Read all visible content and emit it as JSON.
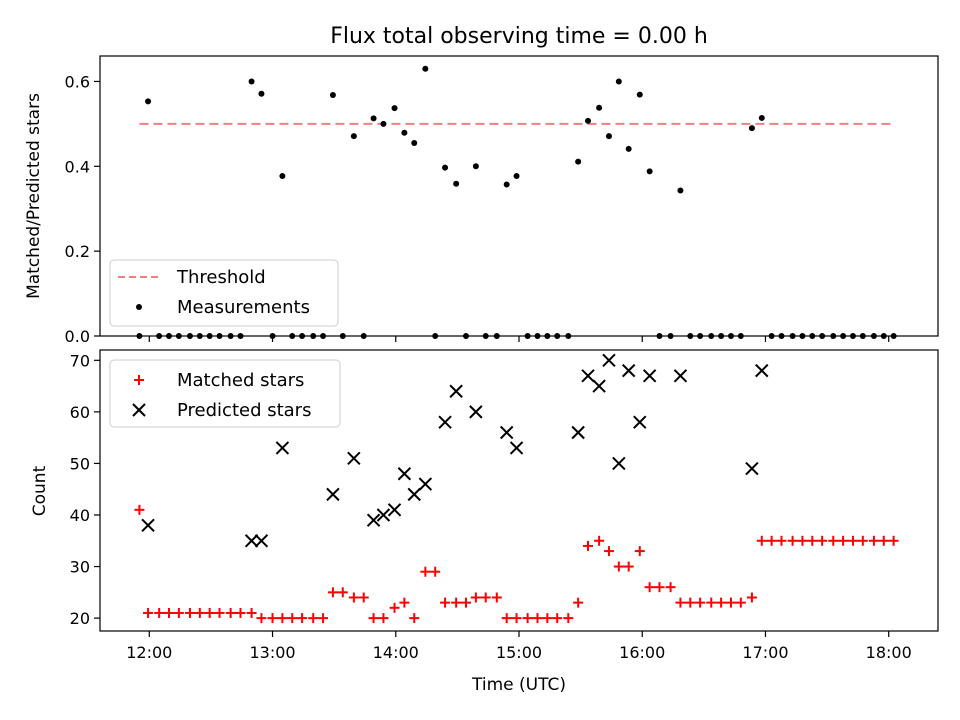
{
  "chart_data": [
    {
      "type": "scatter",
      "title": "Flux total observing time = 0.00 h",
      "xlabel": "",
      "ylabel": "Matched/Predicted stars",
      "ylim": [
        0,
        0.66
      ],
      "yticks": [
        0.0,
        0.2,
        0.4,
        0.6
      ],
      "ytick_labels": [
        "0.0",
        "0.2",
        "0.4",
        "0.6"
      ],
      "xlim": [
        11.6,
        18.4
      ],
      "xticks": [
        12,
        13,
        14,
        15,
        16,
        17,
        18
      ],
      "xtick_labels": [
        "",
        "",
        "",
        "",
        "",
        "",
        ""
      ],
      "legend": {
        "position": "lower left",
        "entries": [
          "Threshold",
          "Measurements"
        ]
      },
      "threshold": {
        "name": "Threshold",
        "x": [
          11.92,
          18.05
        ],
        "y": [
          0.5,
          0.5
        ],
        "color": "#f08080",
        "style": "dashed"
      },
      "measurements": {
        "name": "Measurements",
        "color": "#000000",
        "x": [
          11.92,
          11.99,
          12.08,
          12.16,
          12.24,
          12.33,
          12.41,
          12.49,
          12.57,
          12.66,
          12.74,
          12.83,
          12.91,
          13.0,
          13.08,
          13.16,
          13.24,
          13.33,
          13.41,
          13.49,
          13.57,
          13.66,
          13.74,
          13.82,
          13.9,
          13.99,
          14.07,
          14.15,
          14.24,
          14.32,
          14.4,
          14.49,
          14.57,
          14.65,
          14.73,
          14.82,
          14.9,
          14.98,
          15.07,
          15.15,
          15.23,
          15.31,
          15.4,
          15.48,
          15.56,
          15.65,
          15.73,
          15.81,
          15.89,
          15.98,
          16.06,
          16.14,
          16.23,
          16.31,
          16.39,
          16.47,
          16.56,
          16.64,
          16.72,
          16.8,
          16.89,
          16.97,
          17.05,
          17.13,
          17.22,
          17.3,
          17.38,
          17.46,
          17.55,
          17.63,
          17.71,
          17.79,
          17.88,
          17.96,
          18.04
        ],
        "y": [
          0.0,
          0.553,
          0.0,
          0.0,
          0.0,
          0.0,
          0.0,
          0.0,
          0.0,
          0.0,
          0.0,
          0.6,
          0.571,
          0.0,
          0.377,
          0.0,
          0.0,
          0.0,
          0.0,
          0.568,
          0.0,
          0.471,
          0.0,
          0.513,
          0.5,
          0.537,
          0.479,
          0.455,
          0.63,
          0.0,
          0.397,
          0.359,
          0.0,
          0.4,
          0.0,
          0.0,
          0.357,
          0.377,
          0.0,
          0.0,
          0.0,
          0.0,
          0.0,
          0.411,
          0.507,
          0.538,
          0.471,
          0.6,
          0.441,
          0.569,
          0.388,
          0.0,
          0.0,
          0.343,
          0.0,
          0.0,
          0.0,
          0.0,
          0.0,
          0.0,
          0.49,
          0.514,
          0.0,
          0.0,
          0.0,
          0.0,
          0.0,
          0.0,
          0.0,
          0.0,
          0.0,
          0.0,
          0.0,
          0.0,
          0.0
        ]
      }
    },
    {
      "type": "scatter",
      "title": "",
      "xlabel": "Time (UTC)",
      "ylabel": "Count",
      "ylim": [
        17.5,
        72
      ],
      "yticks": [
        20,
        30,
        40,
        50,
        60,
        70
      ],
      "ytick_labels": [
        "20",
        "30",
        "40",
        "50",
        "60",
        "70"
      ],
      "xlim": [
        11.6,
        18.4
      ],
      "xticks": [
        12,
        13,
        14,
        15,
        16,
        17,
        18
      ],
      "xtick_labels": [
        "12:00",
        "13:00",
        "14:00",
        "15:00",
        "16:00",
        "17:00",
        "18:00"
      ],
      "legend": {
        "position": "upper left",
        "entries": [
          "Matched stars",
          "Predicted stars"
        ]
      },
      "series": [
        {
          "name": "Matched stars",
          "marker": "plus",
          "color": "#ff0000",
          "x": [
            11.92,
            11.99,
            12.08,
            12.16,
            12.24,
            12.33,
            12.41,
            12.49,
            12.57,
            12.66,
            12.74,
            12.83,
            12.91,
            13.0,
            13.08,
            13.16,
            13.24,
            13.33,
            13.41,
            13.49,
            13.57,
            13.66,
            13.74,
            13.82,
            13.9,
            13.99,
            14.07,
            14.15,
            14.24,
            14.32,
            14.4,
            14.49,
            14.57,
            14.65,
            14.73,
            14.82,
            14.9,
            14.98,
            15.07,
            15.15,
            15.23,
            15.31,
            15.4,
            15.48,
            15.56,
            15.65,
            15.73,
            15.81,
            15.89,
            15.98,
            16.06,
            16.14,
            16.23,
            16.31,
            16.39,
            16.47,
            16.56,
            16.64,
            16.72,
            16.8,
            16.89,
            16.97,
            17.05,
            17.13,
            17.22,
            17.3,
            17.38,
            17.46,
            17.55,
            17.63,
            17.71,
            17.79,
            17.88,
            17.96,
            18.04
          ],
          "y": [
            41,
            21,
            21,
            21,
            21,
            21,
            21,
            21,
            21,
            21,
            21,
            21,
            20,
            20,
            20,
            20,
            20,
            20,
            20,
            25,
            25,
            24,
            24,
            20,
            20,
            22,
            23,
            20,
            29,
            29,
            23,
            23,
            23,
            24,
            24,
            24,
            20,
            20,
            20,
            20,
            20,
            20,
            20,
            23,
            34,
            35,
            33,
            30,
            30,
            33,
            26,
            26,
            26,
            23,
            23,
            23,
            23,
            23,
            23,
            23,
            24,
            35,
            35,
            35,
            35,
            35,
            35,
            35,
            35,
            35,
            35,
            35,
            35,
            35,
            35
          ]
        },
        {
          "name": "Predicted stars",
          "marker": "x",
          "color": "#000000",
          "x": [
            11.99,
            12.83,
            12.91,
            13.08,
            13.49,
            13.66,
            13.82,
            13.9,
            13.99,
            14.07,
            14.15,
            14.24,
            14.4,
            14.49,
            14.65,
            14.9,
            14.98,
            15.48,
            15.56,
            15.65,
            15.73,
            15.81,
            15.89,
            15.98,
            16.06,
            16.31,
            16.89,
            16.97
          ],
          "y": [
            38,
            35,
            35,
            53,
            44,
            51,
            39,
            40,
            41,
            48,
            44,
            46,
            58,
            64,
            60,
            56,
            53,
            56,
            67,
            65,
            70,
            50,
            68,
            58,
            67,
            67,
            49,
            68
          ]
        }
      ]
    }
  ]
}
